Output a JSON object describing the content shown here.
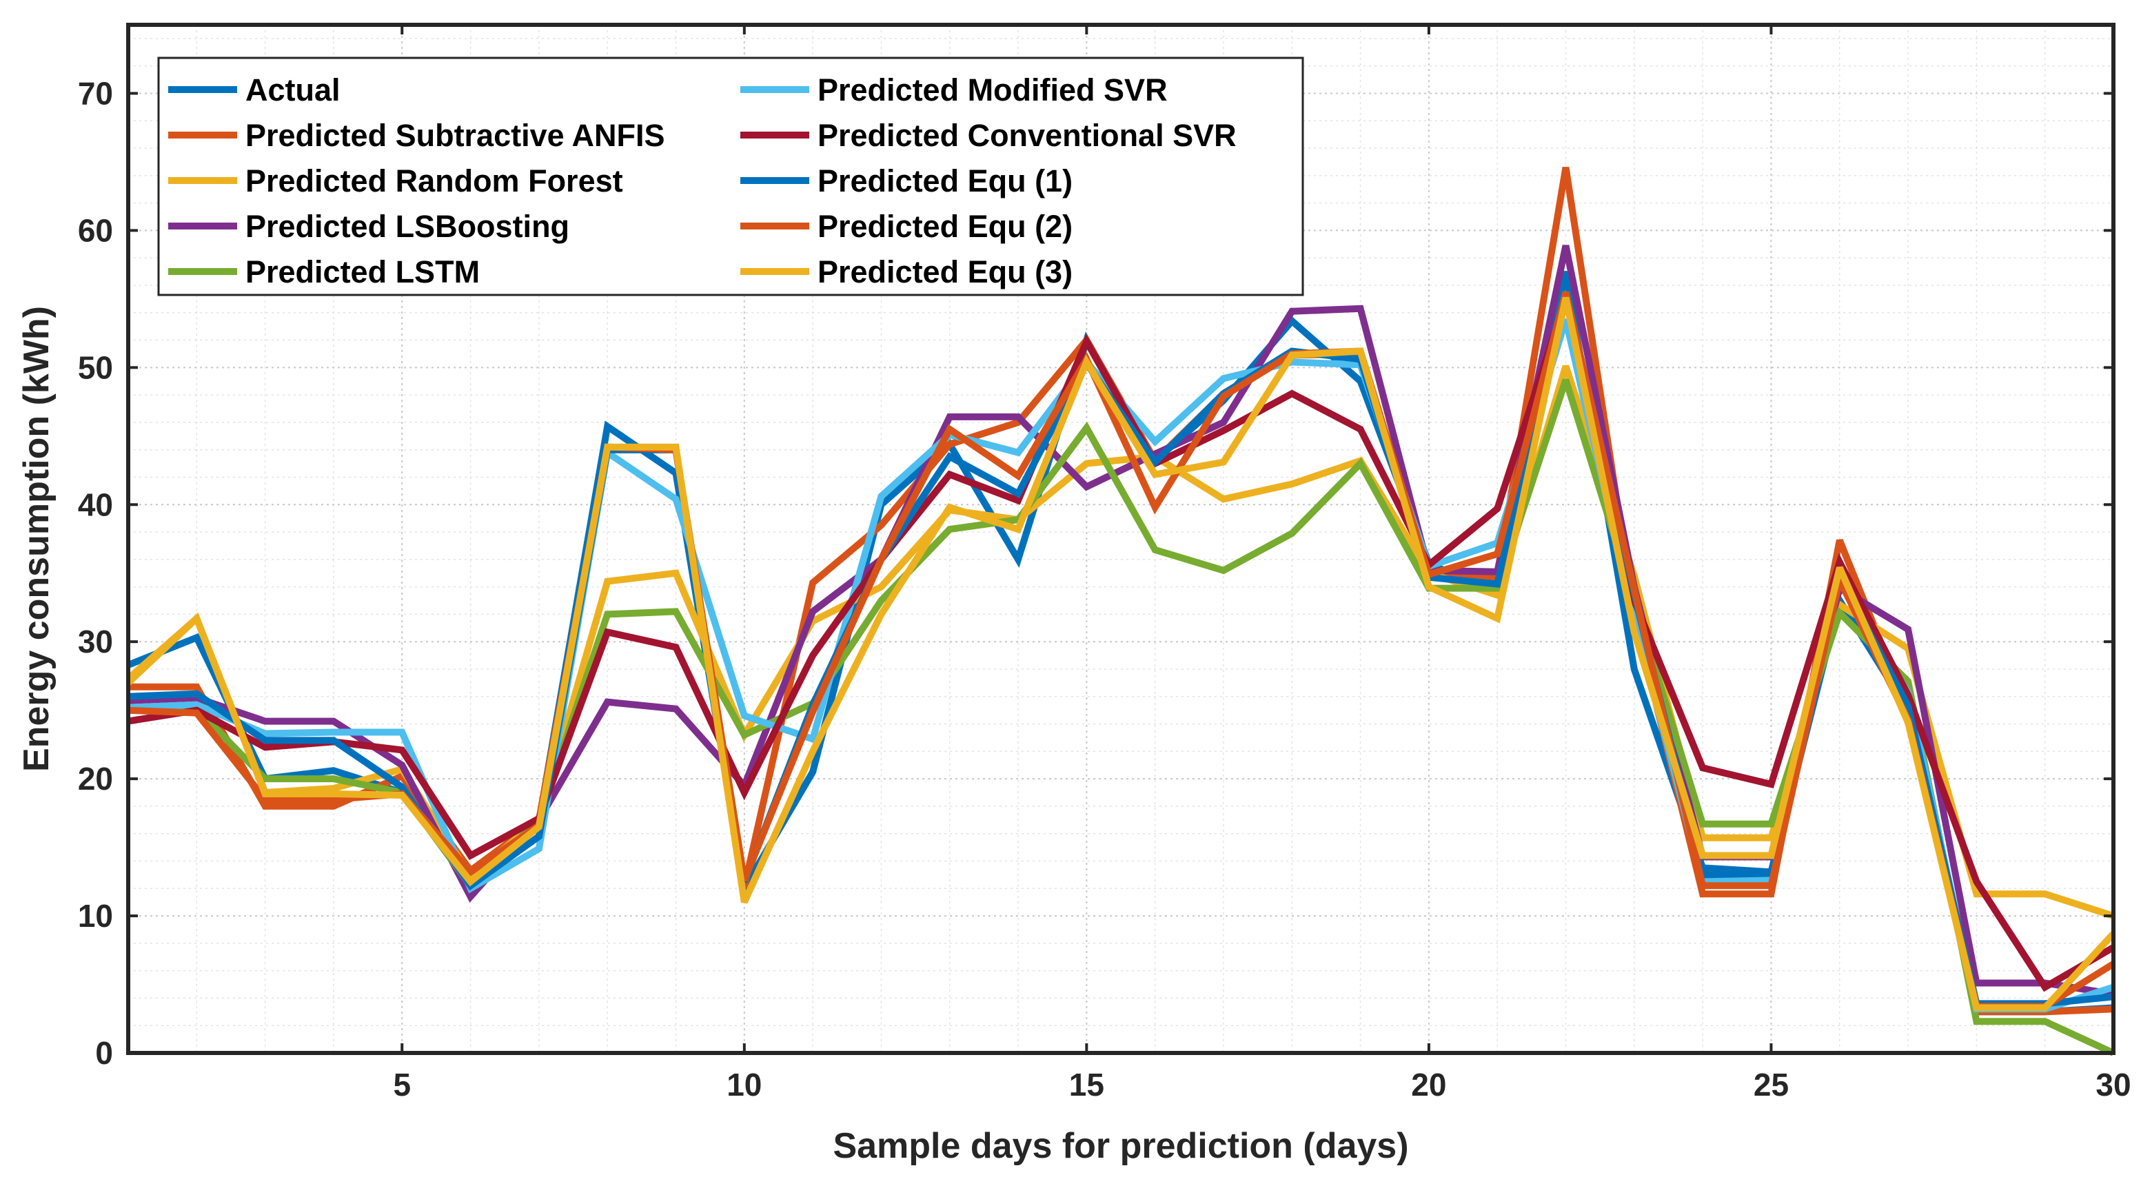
{
  "chart_data": {
    "type": "line",
    "title": "",
    "xlabel": "Sample days for prediction (days)",
    "ylabel": "Energy consumption (kWh)",
    "xlim": [
      1,
      30
    ],
    "ylim": [
      0,
      75
    ],
    "xticks": [
      5,
      10,
      15,
      20,
      25,
      30
    ],
    "yticks": [
      0,
      10,
      20,
      30,
      40,
      50,
      60,
      70
    ],
    "grid": true,
    "legend_position": "top-left",
    "x": [
      1,
      2,
      3,
      4,
      5,
      6,
      7,
      8,
      9,
      10,
      11,
      12,
      13,
      14,
      15,
      16,
      17,
      18,
      19,
      20,
      21,
      22,
      23,
      24,
      25,
      26,
      27,
      28,
      29,
      30
    ],
    "series": [
      {
        "name": "Actual",
        "color": "#0072BD",
        "values": [
          28.3,
          30.3,
          20,
          20.6,
          19,
          12.2,
          16.9,
          45.7,
          42.3,
          12,
          20.5,
          40,
          44.4,
          36,
          52,
          43.2,
          47.6,
          53.4,
          49,
          35.7,
          33.5,
          57,
          28,
          13.5,
          13.2,
          33,
          25,
          3,
          3,
          3.3
        ]
      },
      {
        "name": "Predicted Subtractive ANFIS",
        "color": "#D95319",
        "values": [
          26.7,
          26.7,
          18,
          18,
          20.2,
          13.3,
          17,
          44,
          44,
          12.1,
          34.3,
          38.5,
          44.4,
          46,
          52,
          43.2,
          48.1,
          50.9,
          51,
          34.7,
          34.7,
          64.6,
          32,
          11.6,
          11.6,
          37.4,
          25,
          3,
          3,
          3.2
        ]
      },
      {
        "name": "Predicted Random Forest",
        "color": "#EDB120",
        "values": [
          27,
          31.7,
          19,
          19.3,
          20.7,
          12.9,
          17,
          34.4,
          35,
          23.2,
          31.5,
          34,
          39.6,
          38.9,
          43,
          43.5,
          40.4,
          41.5,
          43.2,
          35,
          33.4,
          50.1,
          34.8,
          15.7,
          15.7,
          32.7,
          29.5,
          11.6,
          11.6,
          10
        ]
      },
      {
        "name": "Predicted LSBoosting",
        "color": "#7E2F8E",
        "values": [
          25.7,
          25.9,
          24.2,
          24.2,
          21,
          11.4,
          17,
          25.6,
          25.1,
          19.5,
          32.2,
          36,
          46.4,
          46.4,
          41.3,
          43.7,
          46,
          54.1,
          54.3,
          35.2,
          35.1,
          58.9,
          34,
          14.3,
          14.3,
          33.9,
          30.9,
          5.1,
          5.1,
          4.3
        ]
      },
      {
        "name": "Predicted LSTM",
        "color": "#77AC30",
        "values": [
          25,
          25.1,
          20,
          20,
          19,
          12.2,
          17,
          32,
          32.2,
          23.2,
          25.5,
          33,
          38.2,
          38.9,
          45.6,
          36.7,
          35.2,
          37.9,
          43,
          33.9,
          33.9,
          49.1,
          33,
          16.7,
          16.7,
          32.1,
          27.1,
          2.3,
          2.3,
          0
        ]
      },
      {
        "name": "Predicted Modified SVR",
        "color": "#4DBEEE",
        "values": [
          25.2,
          25.4,
          23.3,
          23.4,
          23.4,
          12,
          14.9,
          43.8,
          40.4,
          24.6,
          22.9,
          40.6,
          45.1,
          43.8,
          50.4,
          44.6,
          49.2,
          50.4,
          50.2,
          35.5,
          37.2,
          53.5,
          31.6,
          12.6,
          12.6,
          34.5,
          26.3,
          3.2,
          3.2,
          4.8
        ]
      },
      {
        "name": "Predicted Conventional SVR",
        "color": "#A2142F",
        "values": [
          24.2,
          25,
          22.3,
          22.7,
          22.1,
          14.4,
          17.1,
          30.7,
          29.6,
          19,
          29,
          36,
          42.2,
          40.3,
          51.9,
          43,
          45.4,
          48.1,
          45.5,
          35.6,
          39.7,
          55,
          33,
          20.8,
          19.6,
          35.8,
          26.1,
          12.5,
          4.8,
          7.7
        ]
      },
      {
        "name": "Predicted Equ (1)",
        "color": "#0072BD",
        "values": [
          26,
          26.2,
          22.8,
          22.8,
          19.4,
          12.2,
          15.8,
          44,
          44,
          12.5,
          25.4,
          36,
          43.5,
          40.8,
          50.3,
          43.1,
          48.1,
          51.2,
          50.6,
          34.7,
          34.2,
          55.5,
          33.5,
          13,
          13.1,
          34.8,
          25.3,
          3.6,
          3.6,
          4.1
        ]
      },
      {
        "name": "Predicted Equ (2)",
        "color": "#D95319",
        "values": [
          25,
          24.8,
          18.5,
          18.5,
          18.9,
          13.2,
          16.6,
          44.2,
          44,
          12.6,
          24.9,
          36,
          45.5,
          42.1,
          50.6,
          39.8,
          47.9,
          51,
          51.2,
          34.9,
          36.4,
          55.5,
          33.8,
          12.2,
          12.2,
          34.5,
          24.3,
          3.4,
          3.4,
          6.5
        ]
      },
      {
        "name": "Predicted Equ (3)",
        "color": "#EDB120",
        "values": [
          27.3,
          31.7,
          18.9,
          18.9,
          18.8,
          12.5,
          16.5,
          44.2,
          44.2,
          11,
          22,
          32,
          39.8,
          38.2,
          50.4,
          42.2,
          43.1,
          50.9,
          51.2,
          34,
          31.7,
          55.1,
          30.7,
          14.4,
          14.4,
          35.4,
          24.1,
          3.3,
          3.3,
          8.7
        ]
      }
    ]
  }
}
